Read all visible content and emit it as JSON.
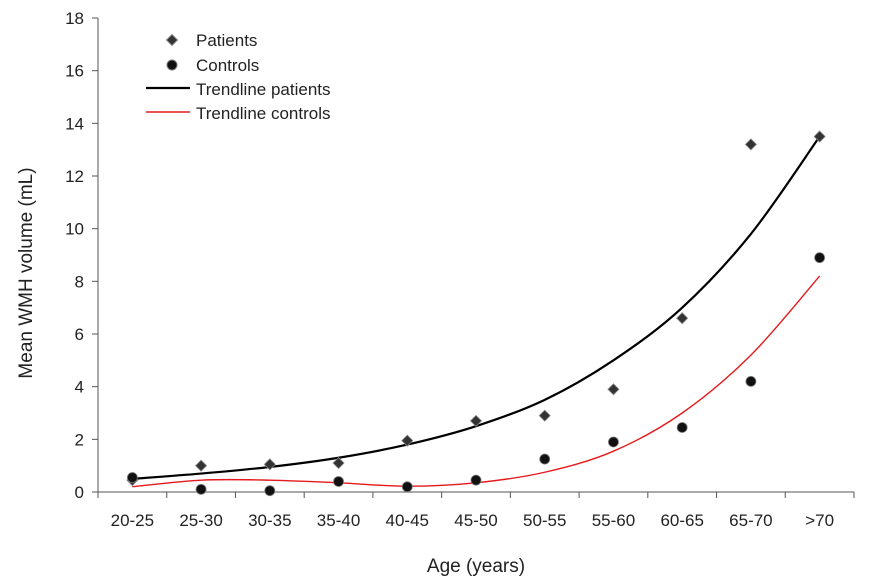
{
  "chart_data": {
    "type": "scatter",
    "xlabel": "Age (years)",
    "ylabel": "Mean WMH volume (mL)",
    "categories": [
      "20-25",
      "25-30",
      "30-35",
      "35-40",
      "40-45",
      "45-50",
      "50-55",
      "55-60",
      "60-65",
      "65-70",
      ">70"
    ],
    "ylim": [
      0,
      18
    ],
    "yticks": [
      0,
      2,
      4,
      6,
      8,
      10,
      12,
      14,
      16,
      18
    ],
    "grid": false,
    "legend_position": "top-left",
    "series": [
      {
        "name": "Patients",
        "kind": "points",
        "marker": "diamond",
        "color": "#333333",
        "values": [
          0.45,
          1.0,
          1.05,
          1.1,
          1.95,
          2.7,
          2.9,
          3.9,
          6.6,
          13.2,
          13.5
        ]
      },
      {
        "name": "Controls",
        "kind": "points",
        "marker": "circle",
        "color": "#111111",
        "values": [
          0.55,
          0.1,
          0.05,
          0.4,
          0.2,
          0.45,
          1.25,
          1.9,
          2.45,
          4.2,
          8.9
        ]
      },
      {
        "name": "Trendline patients",
        "kind": "line",
        "color": "#000000",
        "values": [
          0.5,
          0.7,
          0.95,
          1.3,
          1.8,
          2.5,
          3.5,
          5.0,
          7.0,
          9.8,
          13.5
        ]
      },
      {
        "name": "Trendline controls",
        "kind": "line",
        "color": "#e41a1c",
        "values": [
          0.2,
          0.45,
          0.45,
          0.35,
          0.22,
          0.35,
          0.75,
          1.55,
          3.0,
          5.2,
          8.2
        ]
      }
    ]
  }
}
